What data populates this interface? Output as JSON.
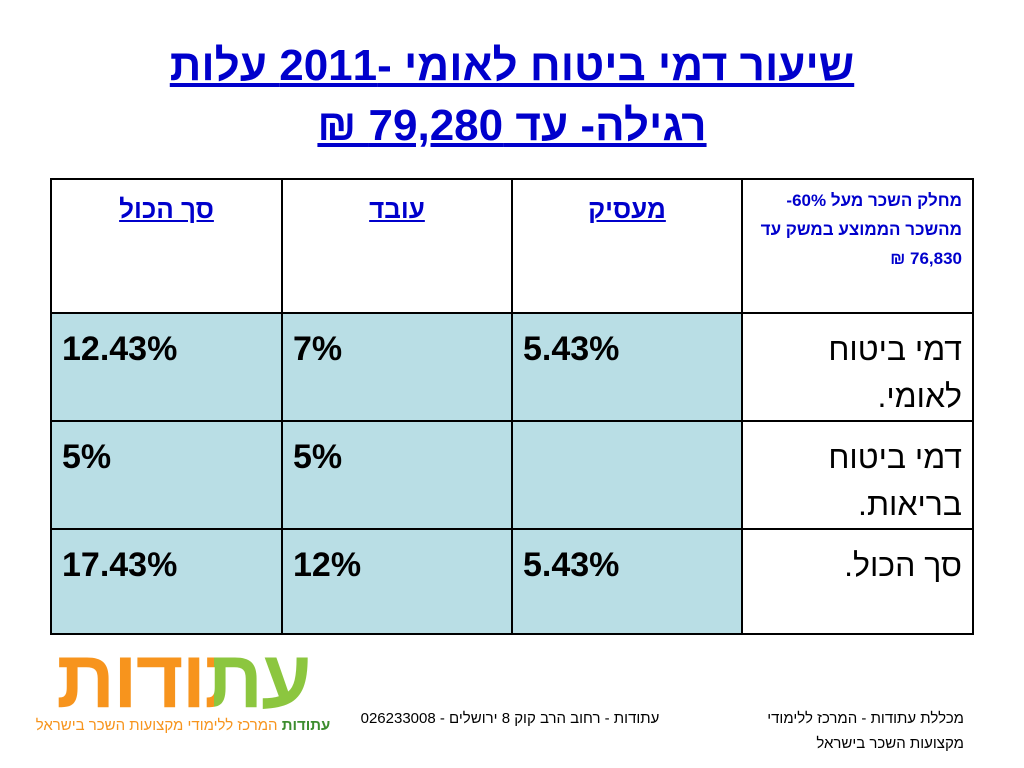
{
  "title": {
    "lines": [
      "שיעור דמי ביטוח לאומי -2011 עלות",
      "רגילה- עד 79,280 ₪"
    ]
  },
  "table": {
    "header": [
      "מחלק השכר מעל 60%- מהשכר הממוצע במשק עד 76,830 ₪",
      "מעסיק",
      "עובד",
      "סך הכול"
    ],
    "rows": [
      [
        "דמי ביטוח לאומי.",
        "5.43%",
        "7%",
        "12.43%"
      ],
      [
        "דמי ביטוח בריאות.",
        null,
        "5%",
        "5%"
      ],
      [
        "סך הכול.",
        "5.43%",
        "12%",
        "17.43%"
      ]
    ]
  },
  "logo": {
    "name": "עתודות",
    "brand": "עתודות",
    "tagline": "המרכז ללימודי מקצועות השכר בישראל"
  },
  "footer": {
    "address": "עתודות - רחוב הרב קוק 8 ירושלים - 026233008",
    "college": "מכללת עתודות - המרכז ללימודי מקצועות השכר בישראל"
  }
}
